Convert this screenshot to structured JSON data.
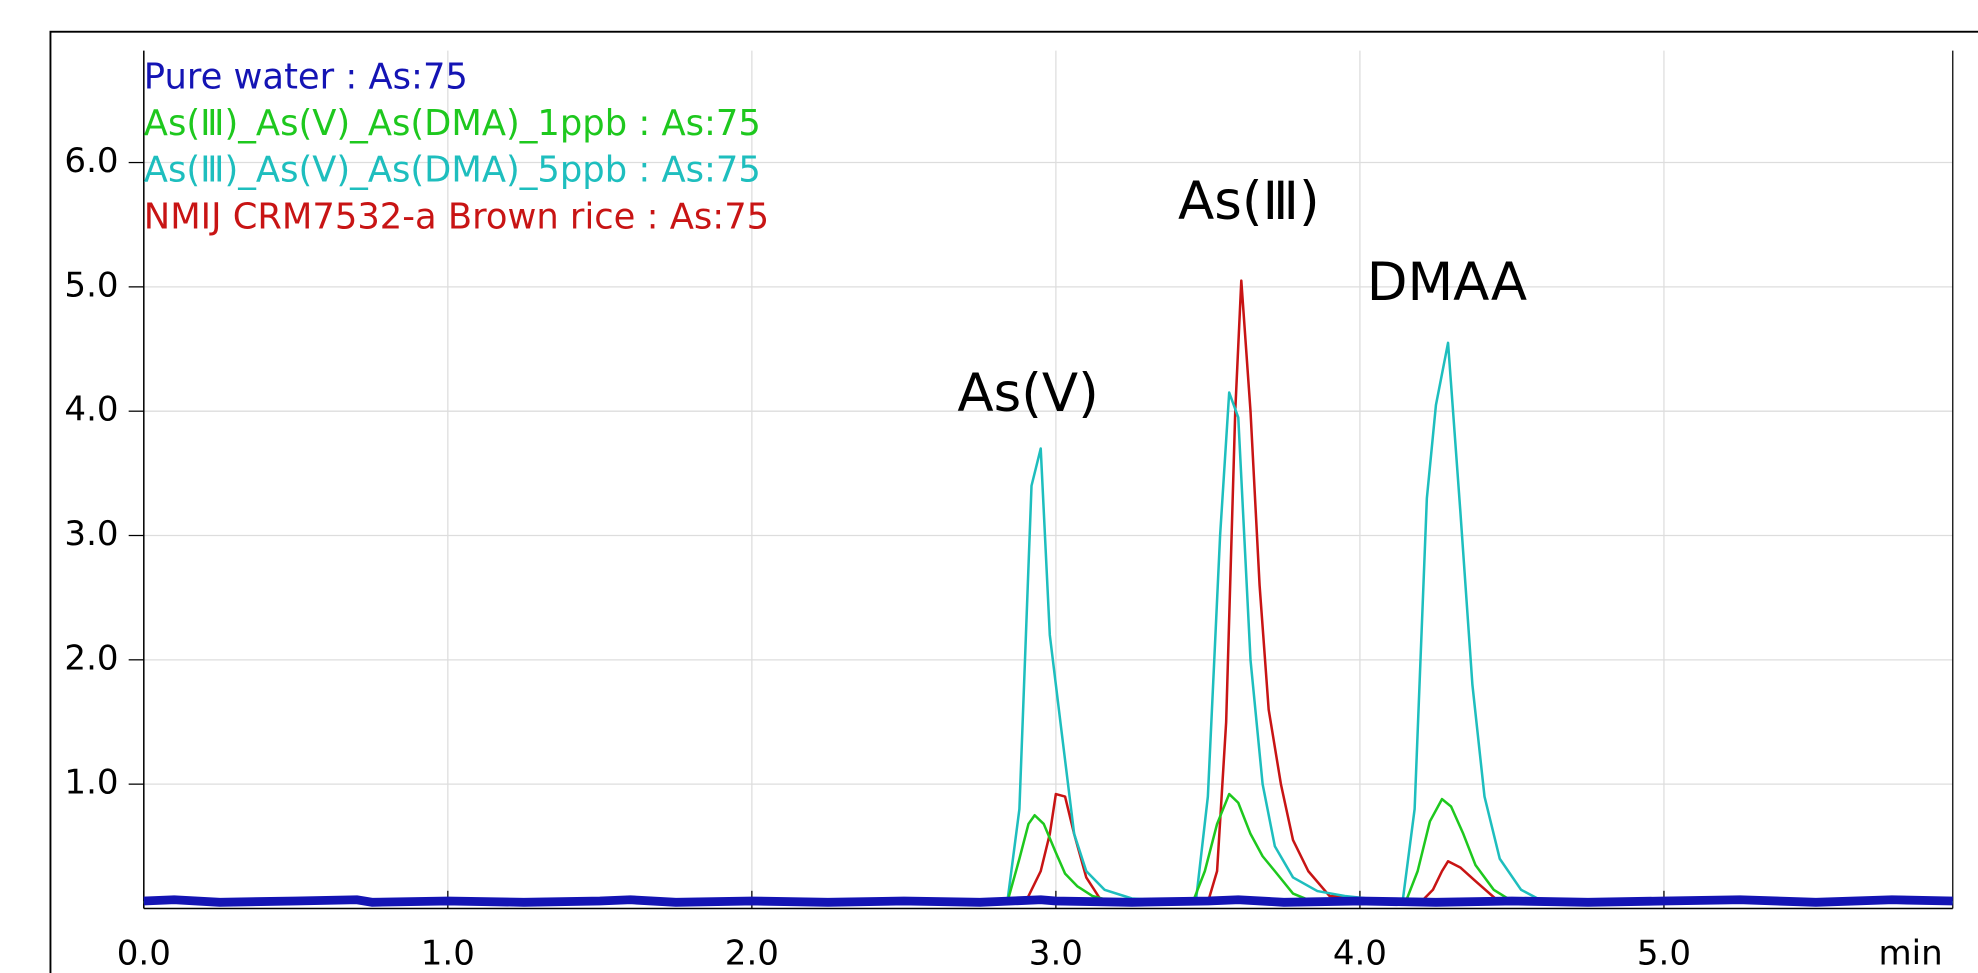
{
  "chart_data": {
    "type": "line",
    "x_label": "min",
    "xlim": [
      0,
      5.95
    ],
    "ylim": [
      0,
      6.9
    ],
    "xticks": [
      {
        "value": 0,
        "label": "0.0"
      },
      {
        "value": 1,
        "label": "1.0"
      },
      {
        "value": 2,
        "label": "2.0"
      },
      {
        "value": 3,
        "label": "3.0"
      },
      {
        "value": 4,
        "label": "4.0"
      },
      {
        "value": 5,
        "label": "5.0"
      }
    ],
    "yticks": [
      {
        "value": 1,
        "label": "1.0"
      },
      {
        "value": 2,
        "label": "2.0"
      },
      {
        "value": 3,
        "label": "3.0"
      },
      {
        "value": 4,
        "label": "4.0"
      },
      {
        "value": 5,
        "label": "5.0"
      },
      {
        "value": 6,
        "label": "6.0"
      }
    ],
    "grid": true,
    "annotations": [
      "As(Ⅴ)",
      "As(Ⅲ)",
      "DMAA"
    ],
    "series": [
      {
        "name": "Pure water : As:75",
        "color": "#1414b4",
        "x": [
          0,
          0.1,
          0.25,
          0.5,
          0.7,
          0.75,
          1,
          1.25,
          1.5,
          1.6,
          1.75,
          2,
          2.25,
          2.5,
          2.75,
          2.95,
          3,
          3.25,
          3.5,
          3.6,
          3.75,
          4,
          4.25,
          4.5,
          4.75,
          5,
          5.25,
          5.5,
          5.75,
          5.95
        ],
        "values": [
          0.06,
          0.07,
          0.05,
          0.06,
          0.07,
          0.05,
          0.06,
          0.05,
          0.06,
          0.07,
          0.05,
          0.06,
          0.05,
          0.06,
          0.05,
          0.07,
          0.06,
          0.05,
          0.06,
          0.07,
          0.05,
          0.06,
          0.05,
          0.06,
          0.05,
          0.06,
          0.07,
          0.05,
          0.07,
          0.06
        ]
      },
      {
        "name": "As(Ⅲ)_As(Ⅴ)_As(DMA)_1ppb : As:75",
        "color": "#1ec81e",
        "x": [
          0,
          2.84,
          2.88,
          2.91,
          2.93,
          2.96,
          3.0,
          3.03,
          3.07,
          3.12,
          3.2,
          3.45,
          3.49,
          3.53,
          3.57,
          3.6,
          3.64,
          3.68,
          3.72,
          3.78,
          3.85,
          4.15,
          4.19,
          4.23,
          4.27,
          4.3,
          4.34,
          4.38,
          4.44,
          4.5,
          5.95
        ],
        "values": [
          0.05,
          0.05,
          0.4,
          0.68,
          0.75,
          0.68,
          0.45,
          0.28,
          0.18,
          0.1,
          0.05,
          0.05,
          0.3,
          0.68,
          0.92,
          0.85,
          0.6,
          0.42,
          0.3,
          0.12,
          0.05,
          0.05,
          0.3,
          0.7,
          0.88,
          0.82,
          0.6,
          0.35,
          0.15,
          0.06,
          0.05
        ]
      },
      {
        "name": "As(Ⅲ)_As(Ⅴ)_As(DMA)_5ppb : As:75",
        "color": "#1ebebe",
        "x": [
          0,
          2.84,
          2.88,
          2.92,
          2.95,
          2.98,
          3.02,
          3.06,
          3.1,
          3.16,
          3.25,
          3.46,
          3.5,
          3.54,
          3.57,
          3.6,
          3.64,
          3.68,
          3.72,
          3.78,
          3.86,
          3.95,
          4.14,
          4.18,
          4.22,
          4.25,
          4.29,
          4.33,
          4.37,
          4.41,
          4.46,
          4.53,
          4.6,
          5.95
        ],
        "values": [
          0.05,
          0.05,
          0.8,
          3.4,
          3.7,
          2.2,
          1.4,
          0.6,
          0.3,
          0.15,
          0.08,
          0.05,
          0.9,
          3.0,
          4.15,
          3.95,
          2.0,
          1.0,
          0.5,
          0.25,
          0.14,
          0.1,
          0.05,
          0.8,
          3.3,
          4.05,
          4.55,
          3.2,
          1.8,
          0.9,
          0.4,
          0.15,
          0.06,
          0.05
        ]
      },
      {
        "name": "NMIJ CRM7532-a Brown rice : As:75",
        "color": "#c81414",
        "x": [
          0,
          2.9,
          2.95,
          2.98,
          3.0,
          3.03,
          3.06,
          3.1,
          3.15,
          3.5,
          3.53,
          3.56,
          3.59,
          3.61,
          3.64,
          3.67,
          3.7,
          3.74,
          3.78,
          3.83,
          3.9,
          4.2,
          4.24,
          4.27,
          4.29,
          4.33,
          4.38,
          4.45,
          5.95
        ],
        "values": [
          0.05,
          0.05,
          0.3,
          0.6,
          0.92,
          0.9,
          0.6,
          0.25,
          0.06,
          0.05,
          0.3,
          1.5,
          4.0,
          5.05,
          4.0,
          2.6,
          1.6,
          1.0,
          0.55,
          0.3,
          0.1,
          0.05,
          0.15,
          0.3,
          0.38,
          0.33,
          0.22,
          0.07,
          0.05
        ]
      }
    ]
  }
}
